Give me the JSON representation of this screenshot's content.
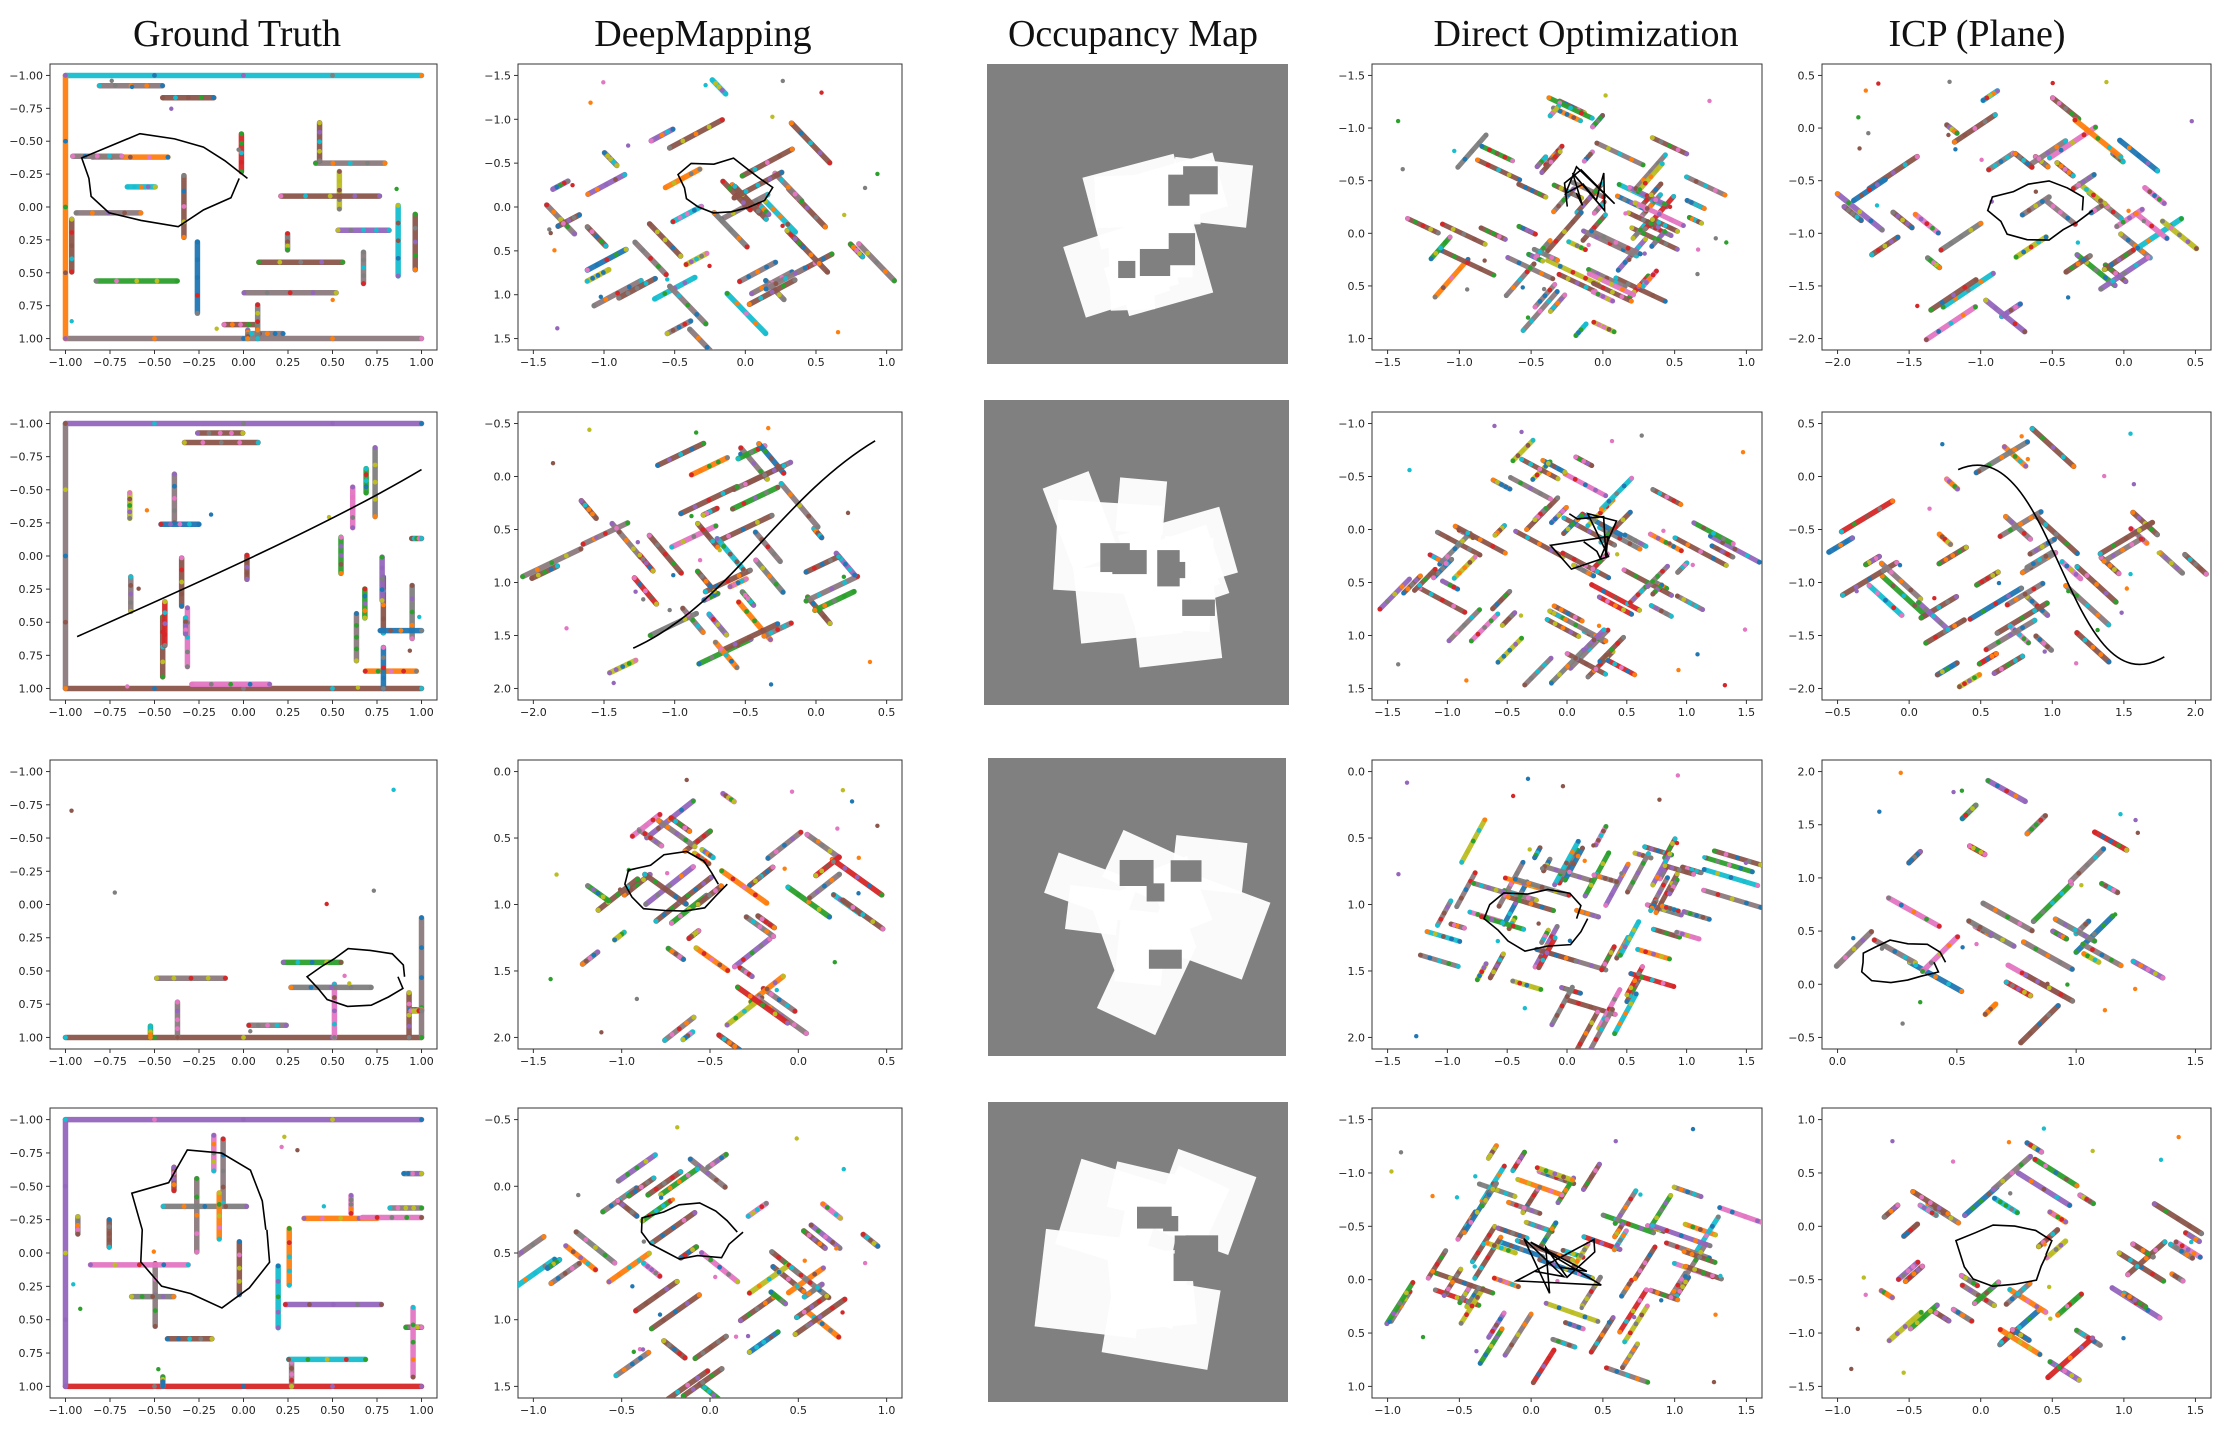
{
  "column_titles": [
    "Ground Truth",
    "DeepMapping",
    "Occupancy Map",
    "Direct Optimization",
    "ICP (Plane)"
  ],
  "colors": {
    "wall": "#8c7b7e",
    "wall_brown": "#8c564b",
    "palette": [
      "#1f77b4",
      "#ff7f0e",
      "#2ca02c",
      "#d62728",
      "#9467bd",
      "#8c564b",
      "#e377c2",
      "#7f7f7f",
      "#bcbd22",
      "#17becf"
    ],
    "trajectory": "#000000",
    "occupancy_bg": "#808080",
    "occupancy_free": "#ffffff"
  },
  "chart_data": [
    {
      "type": "scatter",
      "row": 1,
      "column": "Ground Truth",
      "xticks": [
        "−1.00",
        "−0.75",
        "−0.50",
        "−0.25",
        "0.00",
        "0.25",
        "0.50",
        "0.75",
        "1.00"
      ],
      "yticks": [
        "−1.00",
        "−0.75",
        "−0.50",
        "−0.25",
        "0.00",
        "0.25",
        "0.50",
        "0.75",
        "1.00"
      ],
      "xlim": [
        -1.05,
        1.05
      ],
      "ylim": [
        1.05,
        -1.05
      ],
      "has_trajectory": true,
      "trajectory_kind": "loop"
    },
    {
      "type": "scatter",
      "row": 1,
      "column": "DeepMapping",
      "xticks": [
        "−1.5",
        "−1.0",
        "−0.5",
        "0.0",
        "0.5",
        "1.0"
      ],
      "yticks": [
        "−1.5",
        "−1.0",
        "−0.5",
        "0.0",
        "0.5",
        "1.0",
        "1.5"
      ],
      "xlim": [
        -1.8,
        1.0
      ],
      "ylim": [
        1.55,
        -1.55
      ],
      "has_trajectory": true,
      "trajectory_kind": "loop"
    },
    {
      "type": "heatmap",
      "row": 1,
      "column": "Occupancy Map"
    },
    {
      "type": "scatter",
      "row": 1,
      "column": "Direct Optimization",
      "xticks": [
        "−1.5",
        "−1.0",
        "−0.5",
        "0.0",
        "0.5",
        "1.0"
      ],
      "yticks": [
        "−1.5",
        "−1.0",
        "−0.5",
        "0.0",
        "0.5",
        "1.0"
      ],
      "xlim": [
        -1.9,
        1.3
      ],
      "ylim": [
        1.15,
        -1.85
      ],
      "has_trajectory": true,
      "trajectory_kind": "scribble"
    },
    {
      "type": "scatter",
      "row": 1,
      "column": "ICP (Plane)",
      "xticks": [
        "−2.0",
        "−1.5",
        "−1.0",
        "−0.5",
        "0.0",
        "0.5"
      ],
      "yticks": [
        "0.5",
        "0.0",
        "−0.5",
        "−1.0",
        "−1.5",
        "−2.0"
      ],
      "xlim": [
        -2.0,
        0.8
      ],
      "ylim": [
        -2.1,
        0.9
      ],
      "has_trajectory": true,
      "trajectory_kind": "loop"
    },
    {
      "type": "scatter",
      "row": 2,
      "column": "Ground Truth",
      "xticks": [
        "−1.00",
        "−0.75",
        "−0.50",
        "−0.25",
        "0.00",
        "0.25",
        "0.50",
        "0.75",
        "1.00"
      ],
      "yticks": [
        "−1.00",
        "−0.75",
        "−0.50",
        "−0.25",
        "0.00",
        "0.25",
        "0.50",
        "0.75",
        "1.00"
      ],
      "xlim": [
        -1.05,
        1.05
      ],
      "ylim": [
        1.05,
        -1.05
      ],
      "has_trajectory": true,
      "trajectory_kind": "line"
    },
    {
      "type": "scatter",
      "row": 2,
      "column": "DeepMapping",
      "xticks": [
        "−2.0",
        "−1.5",
        "−1.0",
        "−0.5",
        "0.0",
        "0.5"
      ],
      "yticks": [
        "−0.5",
        "0.0",
        "0.5",
        "1.0",
        "1.5",
        "2.0"
      ],
      "xlim": [
        -2.1,
        0.75
      ],
      "ylim": [
        2.2,
        -0.55
      ],
      "has_trajectory": true,
      "trajectory_kind": "line"
    },
    {
      "type": "heatmap",
      "row": 2,
      "column": "Occupancy Map"
    },
    {
      "type": "scatter",
      "row": 2,
      "column": "Direct Optimization",
      "xticks": [
        "−1.5",
        "−1.0",
        "−0.5",
        "0.0",
        "0.5",
        "1.0",
        "1.5"
      ],
      "yticks": [
        "−1.0",
        "−0.5",
        "0.0",
        "0.5",
        "1.0",
        "1.5"
      ],
      "xlim": [
        -2.0,
        1.75
      ],
      "ylim": [
        1.5,
        -1.5
      ],
      "has_trajectory": true,
      "trajectory_kind": "scribble"
    },
    {
      "type": "scatter",
      "row": 2,
      "column": "ICP (Plane)",
      "xticks": [
        "−0.5",
        "0.0",
        "0.5",
        "1.0",
        "1.5",
        "2.0"
      ],
      "yticks": [
        "0.5",
        "0.0",
        "−0.5",
        "−1.0",
        "−1.5",
        "−2.0"
      ],
      "xlim": [
        -1.0,
        2.0
      ],
      "ylim": [
        -2.25,
        0.5
      ],
      "has_trajectory": true,
      "trajectory_kind": "line"
    },
    {
      "type": "scatter",
      "row": 3,
      "column": "Ground Truth",
      "xticks": [
        "−1.00",
        "−0.75",
        "−0.50",
        "−0.25",
        "0.00",
        "0.25",
        "0.50",
        "0.75",
        "1.00"
      ],
      "yticks": [
        "−1.00",
        "−0.75",
        "−0.50",
        "−0.25",
        "0.00",
        "0.25",
        "0.50",
        "0.75",
        "1.00"
      ],
      "xlim": [
        -1.05,
        1.05
      ],
      "ylim": [
        1.05,
        -1.05
      ],
      "has_trajectory": true,
      "trajectory_kind": "loop"
    },
    {
      "type": "scatter",
      "row": 3,
      "column": "DeepMapping",
      "xticks": [
        "−1.5",
        "−1.0",
        "−0.5",
        "0.0",
        "0.5"
      ],
      "yticks": [
        "0.0",
        "0.5",
        "1.0",
        "1.5",
        "2.0"
      ],
      "xlim": [
        -1.85,
        0.85
      ],
      "ylim": [
        2.2,
        -0.1
      ],
      "has_trajectory": true,
      "trajectory_kind": "loop"
    },
    {
      "type": "heatmap",
      "row": 3,
      "column": "Occupancy Map"
    },
    {
      "type": "scatter",
      "row": 3,
      "column": "Direct Optimization",
      "xticks": [
        "−1.5",
        "−1.0",
        "−0.5",
        "0.0",
        "0.5",
        "1.0",
        "1.5"
      ],
      "yticks": [
        "0.0",
        "0.5",
        "1.0",
        "1.5",
        "2.0"
      ],
      "xlim": [
        -1.85,
        1.75
      ],
      "ylim": [
        2.1,
        -0.25
      ],
      "has_trajectory": true,
      "trajectory_kind": "loop"
    },
    {
      "type": "scatter",
      "row": 3,
      "column": "ICP (Plane)",
      "xticks": [
        "0.0",
        "0.5",
        "1.0",
        "1.5"
      ],
      "yticks": [
        "2.0",
        "1.5",
        "1.0",
        "0.5",
        "0.0",
        "−0.5"
      ],
      "xlim": [
        -0.5,
        1.95
      ],
      "ylim": [
        -0.55,
        2.1
      ],
      "has_trajectory": true,
      "trajectory_kind": "loop"
    },
    {
      "type": "scatter",
      "row": 4,
      "column": "Ground Truth",
      "xticks": [
        "−1.00",
        "−0.75",
        "−0.50",
        "−0.25",
        "0.00",
        "0.25",
        "0.50",
        "0.75",
        "1.00"
      ],
      "yticks": [
        "−1.00",
        "−0.75",
        "−0.50",
        "−0.25",
        "0.00",
        "0.25",
        "0.50",
        "0.75",
        "1.00"
      ],
      "xlim": [
        -1.05,
        1.05
      ],
      "ylim": [
        1.05,
        -1.05
      ],
      "has_trajectory": true,
      "trajectory_kind": "loop"
    },
    {
      "type": "scatter",
      "row": 4,
      "column": "DeepMapping",
      "xticks": [
        "−1.0",
        "−0.5",
        "0.0",
        "0.5",
        "1.0"
      ],
      "yticks": [
        "−0.5",
        "0.0",
        "0.5",
        "1.0",
        "1.5"
      ],
      "xlim": [
        -1.35,
        1.3
      ],
      "ylim": [
        1.65,
        -0.85
      ],
      "has_trajectory": true,
      "trajectory_kind": "loop"
    },
    {
      "type": "heatmap",
      "row": 4,
      "column": "Occupancy Map"
    },
    {
      "type": "scatter",
      "row": 4,
      "column": "Direct Optimization",
      "xticks": [
        "−1.0",
        "−0.5",
        "0.0",
        "0.5",
        "1.0",
        "1.5"
      ],
      "yticks": [
        "−1.5",
        "−1.0",
        "−0.5",
        "0.0",
        "0.5",
        "1.0"
      ],
      "xlim": [
        -1.5,
        1.6
      ],
      "ylim": [
        1.3,
        -1.6
      ],
      "has_trajectory": true,
      "trajectory_kind": "scribble"
    },
    {
      "type": "scatter",
      "row": 4,
      "column": "ICP (Plane)",
      "xticks": [
        "−1.0",
        "−0.5",
        "0.0",
        "0.5",
        "1.0",
        "1.5"
      ],
      "yticks": [
        "1.0",
        "0.5",
        "0.0",
        "−0.5",
        "−1.0",
        "−1.5"
      ],
      "xlim": [
        -1.3,
        1.55
      ],
      "ylim": [
        -1.6,
        1.2
      ],
      "has_trajectory": true,
      "trajectory_kind": "loop"
    }
  ]
}
